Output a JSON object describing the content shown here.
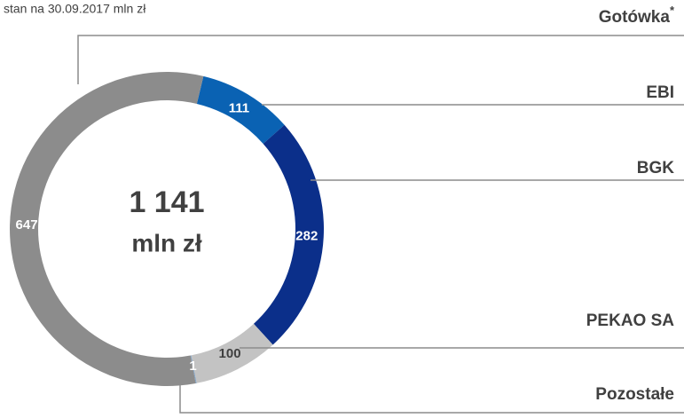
{
  "chart_data": {
    "type": "donut",
    "subtitle": "stan na 30.09.2017 mln zł",
    "categories": [
      "EBI",
      "BGK",
      "PEKAO SA",
      "Pozostałe",
      "Gotówka"
    ],
    "superscripts": [
      null,
      null,
      null,
      null,
      "*"
    ],
    "values": [
      111,
      282,
      100,
      1,
      647
    ],
    "colors": [
      "#0a62b3",
      "#0b2f8a",
      "#c3c3c3",
      "#7fa3c8",
      "#8c8c8c"
    ],
    "value_label_colors": [
      "#ffffff",
      "#ffffff",
      "#404040",
      "#ffffff",
      "#ffffff"
    ],
    "center_text": [
      "1 141",
      "mln zł"
    ]
  }
}
